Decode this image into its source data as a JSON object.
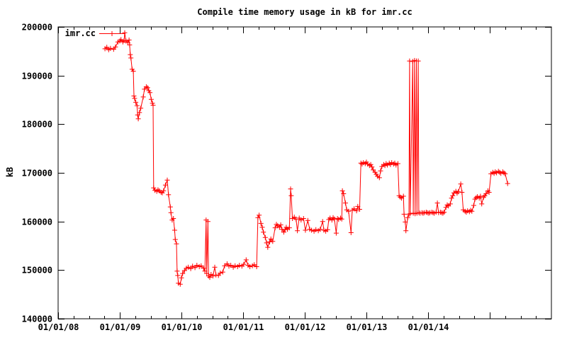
{
  "title": "Compile time memory usage in kB for imr.cc",
  "legend": {
    "label": "imr.cc",
    "position": "top-left-inside"
  },
  "axes": {
    "ylabel": "kB",
    "y_tick_labels": [
      "140000",
      "150000",
      "160000",
      "170000",
      "180000",
      "190000",
      "200000"
    ],
    "x_tick_labels": [
      "01/01/08",
      "01/01/09",
      "01/01/10",
      "01/01/11",
      "01/01/12",
      "01/01/13",
      "01/01/14"
    ]
  },
  "colors": {
    "series": "#ff0000",
    "axis": "#000000",
    "background": "#ffffff",
    "text": "#000000"
  },
  "chart_data": {
    "type": "line",
    "style": "linespoints-plus-markers",
    "title": "Compile time memory usage in kB for imr.cc",
    "xlabel": "",
    "ylabel": "kB",
    "x_axis_kind": "time-decimal-years",
    "xlim": [
      2008.0,
      2016.0
    ],
    "ylim": [
      140000,
      200000
    ],
    "grid": false,
    "legend_position": "top-left-inside",
    "y_ticks": [
      {
        "v": 140000,
        "label": "140000"
      },
      {
        "v": 150000,
        "label": "150000"
      },
      {
        "v": 160000,
        "label": "160000"
      },
      {
        "v": 170000,
        "label": "170000"
      },
      {
        "v": 180000,
        "label": "180000"
      },
      {
        "v": 190000,
        "label": "190000"
      },
      {
        "v": 200000,
        "label": "200000"
      }
    ],
    "x_ticks": [
      {
        "t": 2008,
        "label": "01/01/08"
      },
      {
        "t": 2009,
        "label": "01/01/09"
      },
      {
        "t": 2010,
        "label": "01/01/10"
      },
      {
        "t": 2011,
        "label": "01/01/11"
      },
      {
        "t": 2012,
        "label": "01/01/12"
      },
      {
        "t": 2013,
        "label": "01/01/13"
      },
      {
        "t": 2014,
        "label": "01/01/14"
      },
      {
        "t": 2015,
        "label": ""
      }
    ],
    "x_minor_tick_step": 0.25,
    "series": [
      {
        "name": "imr.cc",
        "color": "#ff0000",
        "marker": "plus",
        "points": [
          [
            2008.76,
            195500
          ],
          [
            2008.79,
            195800
          ],
          [
            2008.82,
            195300
          ],
          [
            2008.85,
            195600
          ],
          [
            2008.9,
            195400
          ],
          [
            2008.93,
            195900
          ],
          [
            2008.97,
            196900
          ],
          [
            2009.0,
            197100
          ],
          [
            2009.02,
            197400
          ],
          [
            2009.05,
            196900
          ],
          [
            2009.07,
            197200
          ],
          [
            2009.08,
            198800
          ],
          [
            2009.1,
            197100
          ],
          [
            2009.13,
            196800
          ],
          [
            2009.15,
            197300
          ],
          [
            2009.16,
            196300
          ],
          [
            2009.17,
            194300
          ],
          [
            2009.18,
            193600
          ],
          [
            2009.2,
            191300
          ],
          [
            2009.22,
            190900
          ],
          [
            2009.23,
            185800
          ],
          [
            2009.24,
            185300
          ],
          [
            2009.26,
            184500
          ],
          [
            2009.28,
            183800
          ],
          [
            2009.29,
            181900
          ],
          [
            2009.3,
            181100
          ],
          [
            2009.32,
            182400
          ],
          [
            2009.34,
            183300
          ],
          [
            2009.38,
            185600
          ],
          [
            2009.4,
            187200
          ],
          [
            2009.43,
            187700
          ],
          [
            2009.45,
            187500
          ],
          [
            2009.47,
            186900
          ],
          [
            2009.49,
            186500
          ],
          [
            2009.51,
            185100
          ],
          [
            2009.53,
            184300
          ],
          [
            2009.54,
            183900
          ],
          [
            2009.55,
            166900
          ],
          [
            2009.57,
            166400
          ],
          [
            2009.6,
            166200
          ],
          [
            2009.62,
            166500
          ],
          [
            2009.64,
            166300
          ],
          [
            2009.67,
            166000
          ],
          [
            2009.69,
            165900
          ],
          [
            2009.71,
            166300
          ],
          [
            2009.74,
            167500
          ],
          [
            2009.77,
            168500
          ],
          [
            2009.79,
            165500
          ],
          [
            2009.82,
            163000
          ],
          [
            2009.83,
            161800
          ],
          [
            2009.85,
            160300
          ],
          [
            2009.87,
            160600
          ],
          [
            2009.89,
            158200
          ],
          [
            2009.9,
            156300
          ],
          [
            2009.92,
            155400
          ],
          [
            2009.93,
            149800
          ],
          [
            2009.94,
            148900
          ],
          [
            2009.95,
            147300
          ],
          [
            2009.98,
            147100
          ],
          [
            2010.0,
            148400
          ],
          [
            2010.02,
            149300
          ],
          [
            2010.05,
            149900
          ],
          [
            2010.08,
            150400
          ],
          [
            2010.11,
            150600
          ],
          [
            2010.15,
            150300
          ],
          [
            2010.18,
            150800
          ],
          [
            2010.22,
            150500
          ],
          [
            2010.25,
            151000
          ],
          [
            2010.29,
            150700
          ],
          [
            2010.32,
            150900
          ],
          [
            2010.36,
            150400
          ],
          [
            2010.38,
            149800
          ],
          [
            2010.4,
            160300
          ],
          [
            2010.41,
            149300
          ],
          [
            2010.43,
            160000
          ],
          [
            2010.44,
            148800
          ],
          [
            2010.46,
            148500
          ],
          [
            2010.48,
            149100
          ],
          [
            2010.51,
            148800
          ],
          [
            2010.54,
            150600
          ],
          [
            2010.56,
            149000
          ],
          [
            2010.6,
            148900
          ],
          [
            2010.63,
            149400
          ],
          [
            2010.67,
            149600
          ],
          [
            2010.7,
            150900
          ],
          [
            2010.74,
            151300
          ],
          [
            2010.77,
            150800
          ],
          [
            2010.8,
            151000
          ],
          [
            2010.84,
            150600
          ],
          [
            2010.87,
            150900
          ],
          [
            2010.91,
            150700
          ],
          [
            2010.94,
            151000
          ],
          [
            2010.98,
            150800
          ],
          [
            2011.01,
            151200
          ],
          [
            2011.05,
            152100
          ],
          [
            2011.08,
            151000
          ],
          [
            2011.11,
            150700
          ],
          [
            2011.15,
            150900
          ],
          [
            2011.18,
            151100
          ],
          [
            2011.22,
            150700
          ],
          [
            2011.24,
            160800
          ],
          [
            2011.26,
            161300
          ],
          [
            2011.29,
            159600
          ],
          [
            2011.31,
            158800
          ],
          [
            2011.33,
            157800
          ],
          [
            2011.36,
            156700
          ],
          [
            2011.38,
            155600
          ],
          [
            2011.4,
            154700
          ],
          [
            2011.43,
            155800
          ],
          [
            2011.45,
            156400
          ],
          [
            2011.48,
            155900
          ],
          [
            2011.52,
            158700
          ],
          [
            2011.54,
            159400
          ],
          [
            2011.56,
            159100
          ],
          [
            2011.59,
            158800
          ],
          [
            2011.61,
            159300
          ],
          [
            2011.63,
            158400
          ],
          [
            2011.66,
            157800
          ],
          [
            2011.68,
            158300
          ],
          [
            2011.7,
            158800
          ],
          [
            2011.72,
            158400
          ],
          [
            2011.75,
            158700
          ],
          [
            2011.77,
            166700
          ],
          [
            2011.78,
            165300
          ],
          [
            2011.8,
            160600
          ],
          [
            2011.83,
            160900
          ],
          [
            2011.86,
            160400
          ],
          [
            2011.88,
            158100
          ],
          [
            2011.91,
            160700
          ],
          [
            2011.94,
            160300
          ],
          [
            2011.98,
            160600
          ],
          [
            2012.01,
            158200
          ],
          [
            2012.05,
            160200
          ],
          [
            2012.08,
            158400
          ],
          [
            2012.11,
            158200
          ],
          [
            2012.15,
            158000
          ],
          [
            2012.18,
            158300
          ],
          [
            2012.22,
            158100
          ],
          [
            2012.25,
            158400
          ],
          [
            2012.29,
            160000
          ],
          [
            2012.31,
            158200
          ],
          [
            2012.34,
            158000
          ],
          [
            2012.37,
            158300
          ],
          [
            2012.39,
            160400
          ],
          [
            2012.41,
            160700
          ],
          [
            2012.44,
            160300
          ],
          [
            2012.46,
            160800
          ],
          [
            2012.48,
            160500
          ],
          [
            2012.51,
            157600
          ],
          [
            2012.53,
            160600
          ],
          [
            2012.55,
            160400
          ],
          [
            2012.58,
            160700
          ],
          [
            2012.6,
            160500
          ],
          [
            2012.61,
            166300
          ],
          [
            2012.63,
            165700
          ],
          [
            2012.66,
            163800
          ],
          [
            2012.68,
            162400
          ],
          [
            2012.71,
            162100
          ],
          [
            2012.75,
            157700
          ],
          [
            2012.77,
            162300
          ],
          [
            2012.8,
            162600
          ],
          [
            2012.84,
            162200
          ],
          [
            2012.86,
            163100
          ],
          [
            2012.89,
            162500
          ],
          [
            2012.91,
            172000
          ],
          [
            2012.93,
            171800
          ],
          [
            2012.95,
            172100
          ],
          [
            2012.98,
            171900
          ],
          [
            2013.0,
            172200
          ],
          [
            2013.02,
            171800
          ],
          [
            2013.05,
            171500
          ],
          [
            2013.07,
            171700
          ],
          [
            2013.09,
            171200
          ],
          [
            2013.11,
            170600
          ],
          [
            2013.14,
            170100
          ],
          [
            2013.16,
            169700
          ],
          [
            2013.18,
            169300
          ],
          [
            2013.21,
            169000
          ],
          [
            2013.23,
            170400
          ],
          [
            2013.25,
            171300
          ],
          [
            2013.28,
            171700
          ],
          [
            2013.3,
            171500
          ],
          [
            2013.32,
            171900
          ],
          [
            2013.34,
            171600
          ],
          [
            2013.37,
            172000
          ],
          [
            2013.39,
            171700
          ],
          [
            2013.41,
            172100
          ],
          [
            2013.44,
            171800
          ],
          [
            2013.46,
            172000
          ],
          [
            2013.48,
            171600
          ],
          [
            2013.51,
            171900
          ],
          [
            2013.53,
            165300
          ],
          [
            2013.55,
            165000
          ],
          [
            2013.57,
            164800
          ],
          [
            2013.6,
            165200
          ],
          [
            2013.61,
            161500
          ],
          [
            2013.63,
            159900
          ],
          [
            2013.64,
            158100
          ],
          [
            2013.67,
            160800
          ],
          [
            2013.69,
            161500
          ],
          [
            2013.7,
            193000
          ],
          [
            2013.71,
            161600
          ],
          [
            2013.75,
            192900
          ],
          [
            2013.76,
            161700
          ],
          [
            2013.78,
            193100
          ],
          [
            2013.79,
            161600
          ],
          [
            2013.81,
            193000
          ],
          [
            2013.82,
            161700
          ],
          [
            2013.84,
            193000
          ],
          [
            2013.85,
            161800
          ],
          [
            2013.87,
            161700
          ],
          [
            2013.9,
            161800
          ],
          [
            2013.92,
            161700
          ],
          [
            2013.94,
            161800
          ],
          [
            2013.97,
            161900
          ],
          [
            2013.99,
            161800
          ],
          [
            2014.01,
            161700
          ],
          [
            2014.03,
            161800
          ],
          [
            2014.06,
            161900
          ],
          [
            2014.08,
            161800
          ],
          [
            2014.1,
            161700
          ],
          [
            2014.13,
            161900
          ],
          [
            2014.15,
            163800
          ],
          [
            2014.17,
            161800
          ],
          [
            2014.2,
            161900
          ],
          [
            2014.22,
            161800
          ],
          [
            2014.24,
            161700
          ],
          [
            2014.26,
            161900
          ],
          [
            2014.29,
            162900
          ],
          [
            2014.31,
            163400
          ],
          [
            2014.33,
            163200
          ],
          [
            2014.36,
            163600
          ],
          [
            2014.38,
            164800
          ],
          [
            2014.4,
            165300
          ],
          [
            2014.42,
            165900
          ],
          [
            2014.45,
            166200
          ],
          [
            2014.47,
            165800
          ],
          [
            2014.49,
            166100
          ],
          [
            2014.53,
            167700
          ],
          [
            2014.55,
            166000
          ],
          [
            2014.57,
            162400
          ],
          [
            2014.6,
            162100
          ],
          [
            2014.62,
            161900
          ],
          [
            2014.64,
            162200
          ],
          [
            2014.67,
            162000
          ],
          [
            2014.69,
            162300
          ],
          [
            2014.71,
            162100
          ],
          [
            2014.74,
            163300
          ],
          [
            2014.76,
            164600
          ],
          [
            2014.78,
            164900
          ],
          [
            2014.8,
            165100
          ],
          [
            2014.83,
            164800
          ],
          [
            2014.85,
            165200
          ],
          [
            2014.87,
            163600
          ],
          [
            2014.9,
            165000
          ],
          [
            2014.92,
            165300
          ],
          [
            2014.94,
            165700
          ],
          [
            2014.97,
            166300
          ],
          [
            2014.99,
            166000
          ],
          [
            2015.02,
            169800
          ],
          [
            2015.05,
            170100
          ],
          [
            2015.07,
            169900
          ],
          [
            2015.09,
            170200
          ],
          [
            2015.11,
            170000
          ],
          [
            2015.14,
            170300
          ],
          [
            2015.16,
            170100
          ],
          [
            2015.18,
            169900
          ],
          [
            2015.21,
            170200
          ],
          [
            2015.23,
            170000
          ],
          [
            2015.25,
            169800
          ],
          [
            2015.29,
            167800
          ]
        ]
      }
    ]
  }
}
